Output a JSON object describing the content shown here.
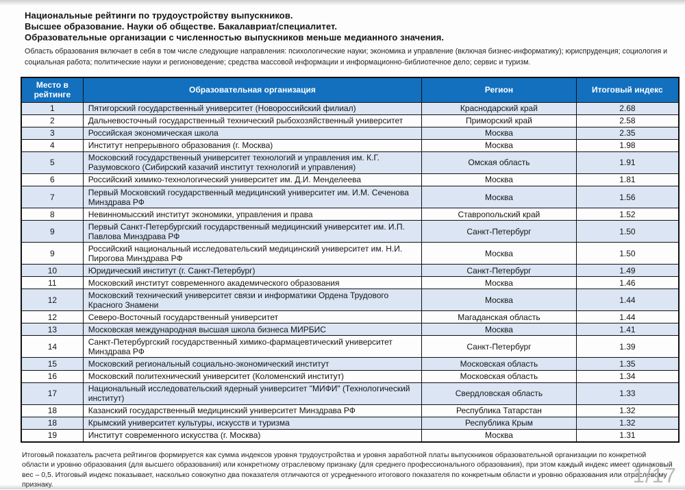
{
  "header": {
    "title_lines": [
      "Национальные рейтинги по трудоустройству выпускников.",
      "Высшее образование. Науки об обществе. Бакалавриат/специалитет.",
      "Образовательные организации с численностью выпускников меньше медианного значения."
    ],
    "subtitle": "Область образования включает в себя в том числе следующие направления:  психологические науки; экономика и управление (включая бизнес-информатику); юриспруденция; социология и социальная работа; политические науки и регионоведение; средства массовой информации и информационно-библиотечное дело; сервис и туризм."
  },
  "table": {
    "headers": [
      "Место в рейтинге",
      "Образовательная организация",
      "Регион",
      "Итоговый индекс"
    ],
    "rows": [
      {
        "rank": "1",
        "organization": "Пятигорский государственный университет (Новороссийский филиал)",
        "region": "Краснодарский край",
        "index": "2.68"
      },
      {
        "rank": "2",
        "organization": "Дальневосточный государственный технический рыбохозяйственный университет",
        "region": "Приморский край",
        "index": "2.58"
      },
      {
        "rank": "3",
        "organization": "Российская экономическая школа",
        "region": "Москва",
        "index": "2.35"
      },
      {
        "rank": "4",
        "organization": "Институт непрерывного образования (г. Москва)",
        "region": "Москва",
        "index": "1.98"
      },
      {
        "rank": "5",
        "organization": "Московский государственный университет технологий и управления им. К.Г. Разумовского (Сибирский казачий институт технологий и управления)",
        "region": "Омская область",
        "index": "1.91"
      },
      {
        "rank": "6",
        "organization": "Российский химико-технологический университет им. Д.И. Менделеева",
        "region": "Москва",
        "index": "1.81"
      },
      {
        "rank": "7",
        "organization": "Первый Московский государственный медицинский университет им. И.М. Сеченова Минздрава РФ",
        "region": "Москва",
        "index": "1.56"
      },
      {
        "rank": "8",
        "organization": "Невинномысский институт экономики, управления и права",
        "region": "Ставропольский край",
        "index": "1.52"
      },
      {
        "rank": "9",
        "organization": "Первый Санкт-Петербургский государственный медицинский университет им. И.П. Павлова Минздрава РФ",
        "region": "Санкт-Петербург",
        "index": "1.50"
      },
      {
        "rank": "9",
        "organization": "Российский национальный исследовательский медицинский университет им. Н.И. Пирогова Минздрава РФ",
        "region": "Москва",
        "index": "1.50"
      },
      {
        "rank": "10",
        "organization": "Юридический институт (г. Санкт-Петербург)",
        "region": "Санкт-Петербург",
        "index": "1.49"
      },
      {
        "rank": "11",
        "organization": "Московский институт современного академического образования",
        "region": "Москва",
        "index": "1.46"
      },
      {
        "rank": "12",
        "organization": "Московский технический университет связи и информатики Ордена Трудового Красного Знамени",
        "region": "Москва",
        "index": "1.44"
      },
      {
        "rank": "12",
        "organization": "Северо-Восточный государственный университет",
        "region": "Магаданская область",
        "index": "1.44"
      },
      {
        "rank": "13",
        "organization": "Московская международная высшая школа бизнеса МИРБИС",
        "region": "Москва",
        "index": "1.41"
      },
      {
        "rank": "14",
        "organization": "Санкт-Петербургский государственный химико-фармацевтический университет Минздрава РФ",
        "region": "Санкт-Петербург",
        "index": "1.39"
      },
      {
        "rank": "15",
        "organization": "Московский региональный социально-экономический институт",
        "region": "Московская область",
        "index": "1.35"
      },
      {
        "rank": "16",
        "organization": "Московский политехнический университет (Коломенский институт)",
        "region": "Московская область",
        "index": "1.34"
      },
      {
        "rank": "17",
        "organization": "Национальный исследовательский ядерный университет \"МИФИ\" (Технологический институт)",
        "region": "Свердловская область",
        "index": "1.33"
      },
      {
        "rank": "18",
        "organization": "Казанский государственный медицинский университет Минздрава РФ",
        "region": "Республика Татарстан",
        "index": "1.32"
      },
      {
        "rank": "18",
        "organization": "Крымский университет культуры, искусств и туризма",
        "region": "Республика Крым",
        "index": "1.32"
      },
      {
        "rank": "19",
        "organization": "Институт современного искусства (г. Москва)",
        "region": "Москва",
        "index": "1.31"
      }
    ]
  },
  "footer": {
    "note": "Итоговый показатель расчета рейтингов формируется как сумма индексов уровня трудоустройства и уровня заработной платы выпускников образовательной организации по конкретной области и уровню образования (для высшего образования) или конкретному отраслевому признаку (для среднего профессионального образования), при этом каждый индекс имеет одинаковый вес – 0,5. Итоговый индекс показывает, насколько совокупно два показателя отличаются от усредненного итогового показателя по конкретным области и уровню образования или отраслевому признаку.",
    "page_number": "1",
    "page_indicator": "1/17"
  },
  "colors": {
    "table_header_bg": "#1270bf",
    "row_alt_bg": "#dbe5f3",
    "table_border": "#101010",
    "page_indicator_text": "#b7babd"
  }
}
